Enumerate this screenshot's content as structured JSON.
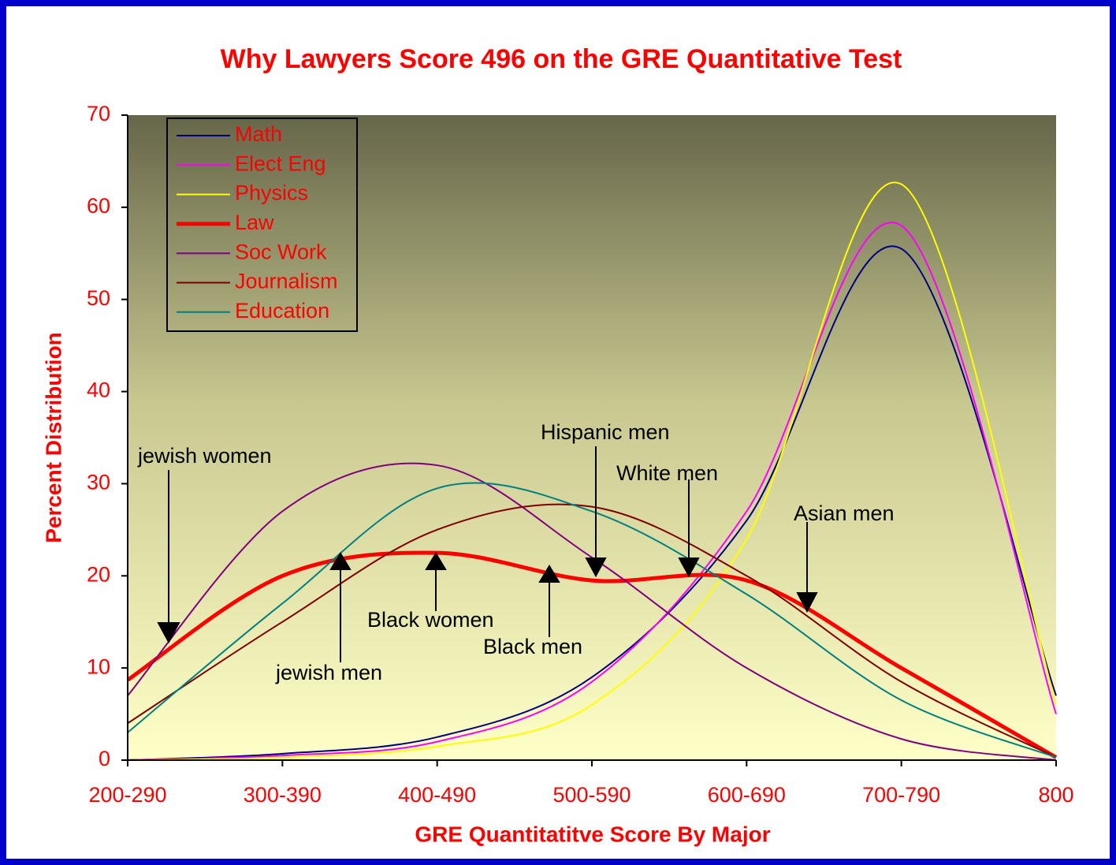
{
  "chart_data": {
    "type": "line",
    "title": "Why Lawyers  Score 496 on the GRE Quantitative Test",
    "x_label": "GRE Quantitatitve Score By Major",
    "y_label": "Percent Distribution",
    "categories": [
      "200-290",
      "300-390",
      "400-490",
      "500-590",
      "600-690",
      "700-790",
      "800"
    ],
    "ylim": [
      0,
      70
    ],
    "yticks": [
      0,
      10,
      20,
      30,
      40,
      50,
      60,
      70
    ],
    "legend": "upper left",
    "series": [
      {
        "name": "Math",
        "color": "#000080",
        "values": [
          0,
          0.7,
          2.5,
          9,
          26,
          55.5,
          7
        ]
      },
      {
        "name": "Elect Eng",
        "color": "#ff00ff",
        "values": [
          0,
          0.5,
          2,
          8.5,
          27,
          58,
          5
        ]
      },
      {
        "name": "Physics",
        "color": "#ffff00",
        "values": [
          0,
          0.3,
          1.5,
          6,
          24,
          62.5,
          6
        ]
      },
      {
        "name": "Law",
        "color": "#ff0000",
        "values": [
          8.7,
          20,
          22.5,
          19.5,
          19.5,
          10,
          0.3
        ]
      },
      {
        "name": "Soc Work",
        "color": "#800080",
        "values": [
          7,
          27,
          32,
          22,
          10,
          2.3,
          0
        ]
      },
      {
        "name": "Journalism",
        "color": "#800000",
        "values": [
          4,
          15,
          25,
          27.5,
          20,
          8.5,
          0.3
        ]
      },
      {
        "name": "Education",
        "color": "#008080",
        "values": [
          3,
          17,
          29.5,
          27,
          18,
          6.5,
          0.3
        ]
      }
    ],
    "annotations": [
      "jewish women",
      "jewish men",
      "Black women",
      "Black men",
      "Hispanic men",
      "White men",
      "Asian men"
    ]
  }
}
